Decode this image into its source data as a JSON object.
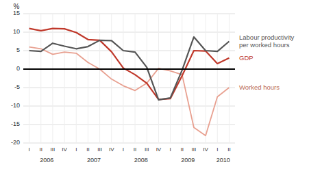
{
  "chart_data": {
    "type": "line",
    "y_label": "%",
    "categories": [
      "I",
      "II",
      "III",
      "IV",
      "I",
      "II",
      "III",
      "IV",
      "I",
      "II",
      "III",
      "IV",
      "I",
      "II",
      "III",
      "IV",
      "I",
      "II"
    ],
    "x_group_labels": [
      "2006",
      "2007",
      "2008",
      "2009",
      "2010"
    ],
    "series": [
      {
        "name": "Worked hours",
        "color": "#e8a090",
        "values": [
          6.0,
          5.5,
          4.0,
          4.6,
          4.3,
          1.8,
          0.0,
          -2.7,
          -4.5,
          -5.8,
          -3.8,
          0.2,
          -0.5,
          -1.5,
          -15.8,
          -18.0,
          -7.5,
          -5.0
        ]
      },
      {
        "name": "GDP",
        "color": "#c0392b",
        "values": [
          11.0,
          10.4,
          11.0,
          10.9,
          9.9,
          8.0,
          7.8,
          4.7,
          0.3,
          -1.5,
          -3.8,
          -8.2,
          -8.0,
          -1.8,
          5.0,
          4.9,
          1.5,
          3.0
        ]
      },
      {
        "name": "Labour productivity\nper worked hours",
        "color": "#555555",
        "values": [
          5.0,
          4.8,
          7.0,
          6.2,
          5.5,
          6.1,
          7.8,
          7.7,
          5.0,
          4.6,
          0.5,
          -8.3,
          -7.8,
          -0.3,
          8.7,
          5.0,
          4.8,
          7.5
        ]
      }
    ],
    "reference_lines": [
      {
        "value": 0,
        "color": "#000000"
      }
    ],
    "ylim": [
      -20,
      15
    ],
    "yticks": [
      -20,
      -15,
      -10,
      -5,
      0,
      5,
      10,
      15
    ],
    "grid": true
  }
}
